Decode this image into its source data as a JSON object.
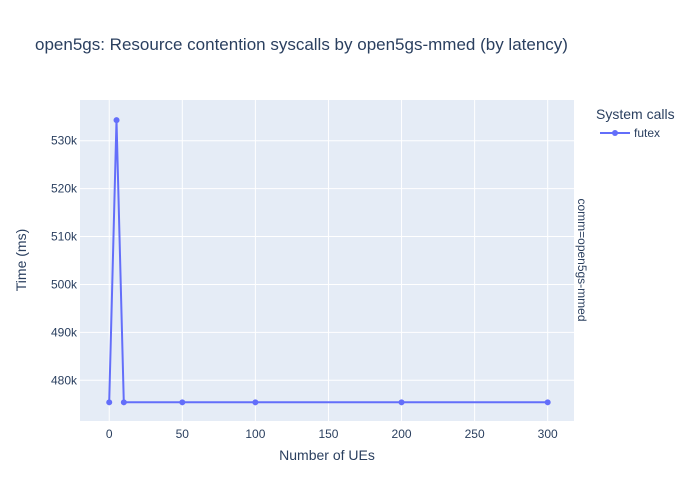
{
  "chart_data": {
    "type": "line",
    "title": "open5gs: Resource contention syscalls by open5gs-mmed (by latency)",
    "xlabel": "Number of UEs",
    "ylabel": "Time (ms)",
    "xlim": [
      -20,
      318
    ],
    "ylim": [
      471500,
      538500
    ],
    "x_ticks": [
      0,
      50,
      100,
      150,
      200,
      250,
      300
    ],
    "y_ticks": [
      480000,
      490000,
      500000,
      510000,
      520000,
      530000
    ],
    "y_tick_labels": [
      "480k",
      "490k",
      "500k",
      "510k",
      "520k",
      "530k"
    ],
    "grid": true,
    "legend_title": "System calls",
    "legend_position": "top-right",
    "facet_label": "comm=open5gs-mmed",
    "series": [
      {
        "name": "futex",
        "color": "#636efa",
        "x": [
          0,
          5,
          10,
          50,
          100,
          200,
          300
        ],
        "y": [
          475400,
          534300,
          475400,
          475400,
          475400,
          475400,
          475400
        ]
      }
    ]
  },
  "colors": {
    "plot_bg": "#e5ecf6",
    "grid": "#ffffff",
    "text": "#2a3f5f"
  }
}
